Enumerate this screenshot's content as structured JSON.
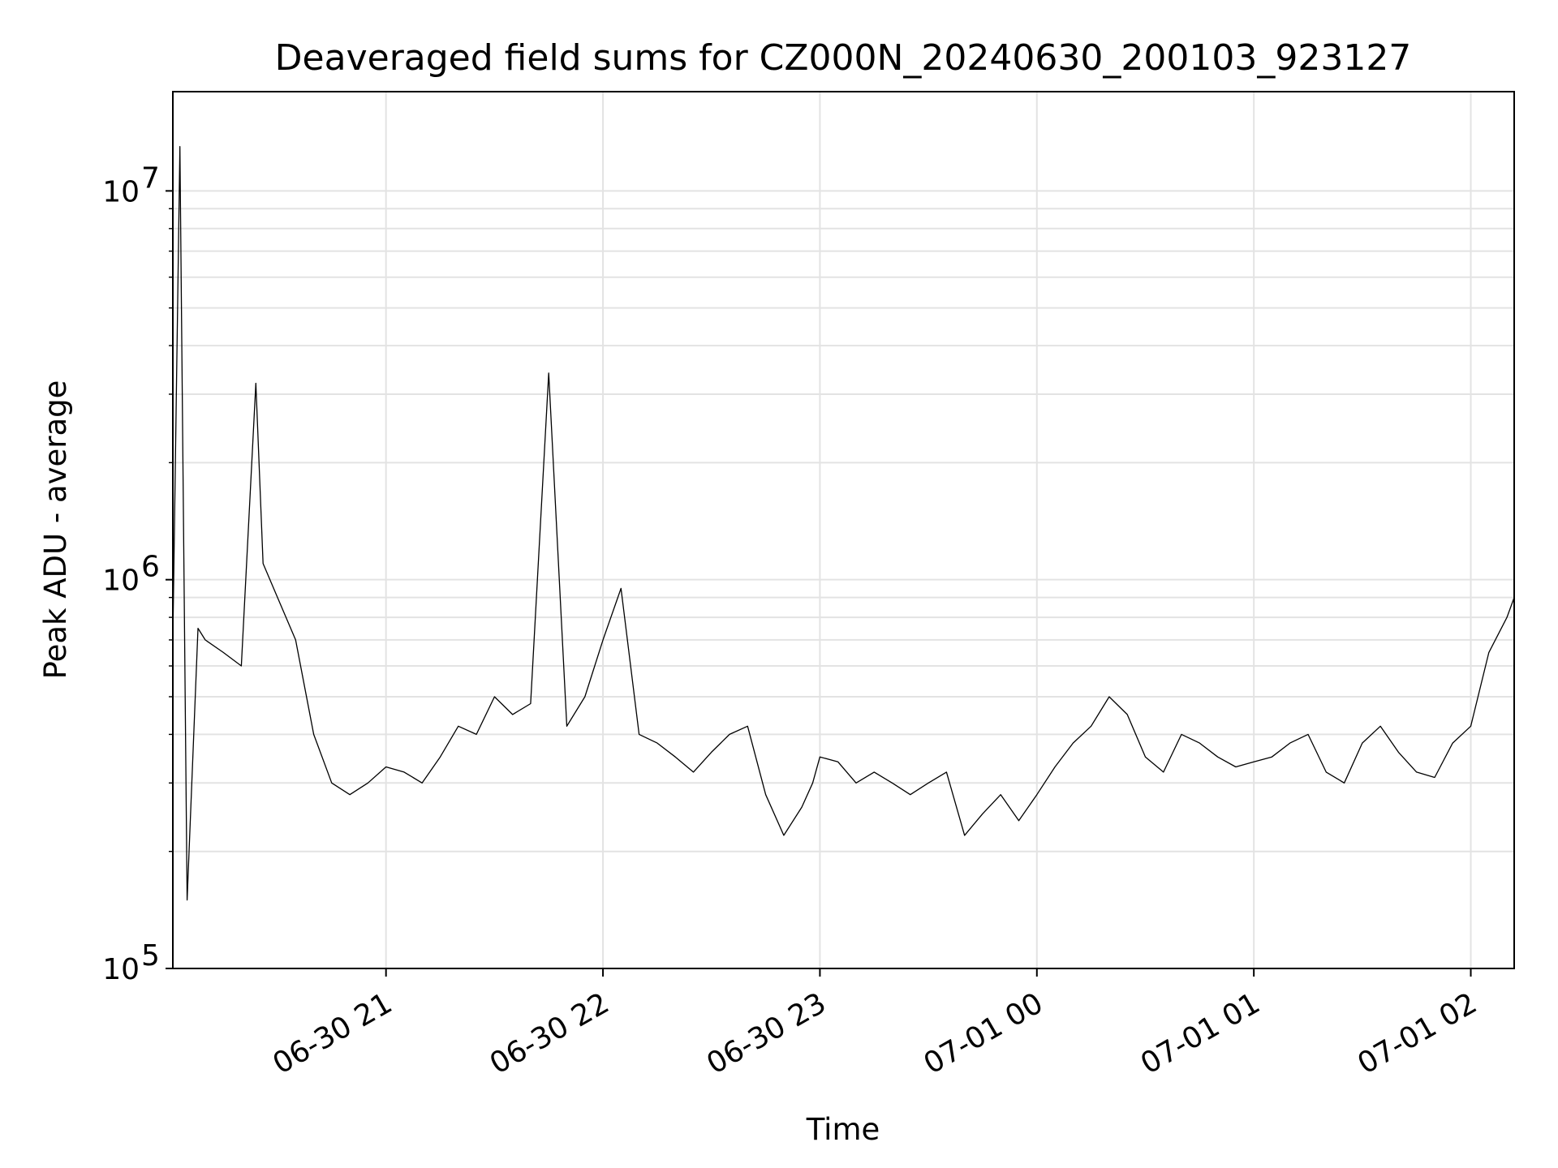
{
  "chart_data": {
    "type": "line",
    "title": "Deaveraged field sums for CZ000N_20240630_200103_923127",
    "xlabel": "Time",
    "ylabel": "Peak ADU - average",
    "yscale": "log",
    "ylim": [
      100000,
      18000000
    ],
    "xlim": [
      "2024-06-30T20:01:03",
      "2024-07-01T02:12:00"
    ],
    "grid": true,
    "x_ticks": [
      {
        "t": "2024-06-30T21:00:00",
        "label": "06-30 21"
      },
      {
        "t": "2024-06-30T22:00:00",
        "label": "06-30 22"
      },
      {
        "t": "2024-06-30T23:00:00",
        "label": "06-30 23"
      },
      {
        "t": "2024-07-01T00:00:00",
        "label": "07-01 00"
      },
      {
        "t": "2024-07-01T01:00:00",
        "label": "07-01 01"
      },
      {
        "t": "2024-07-01T02:00:00",
        "label": "07-01 02"
      }
    ],
    "y_ticks": [
      {
        "v": 100000,
        "label": "10",
        "exp": "5"
      },
      {
        "v": 1000000,
        "label": "10",
        "exp": "6"
      },
      {
        "v": 10000000,
        "label": "10",
        "exp": "7"
      }
    ],
    "series": [
      {
        "color": "#000000",
        "x": [
          "2024-06-30T20:01:03",
          "2024-06-30T20:03:00",
          "2024-06-30T20:05:00",
          "2024-06-30T20:08:00",
          "2024-06-30T20:10:00",
          "2024-06-30T20:15:00",
          "2024-06-30T20:20:00",
          "2024-06-30T20:24:00",
          "2024-06-30T20:26:00",
          "2024-06-30T20:30:00",
          "2024-06-30T20:35:00",
          "2024-06-30T20:40:00",
          "2024-06-30T20:45:00",
          "2024-06-30T20:50:00",
          "2024-06-30T20:55:00",
          "2024-06-30T21:00:00",
          "2024-06-30T21:05:00",
          "2024-06-30T21:10:00",
          "2024-06-30T21:15:00",
          "2024-06-30T21:20:00",
          "2024-06-30T21:25:00",
          "2024-06-30T21:30:00",
          "2024-06-30T21:35:00",
          "2024-06-30T21:40:00",
          "2024-06-30T21:45:00",
          "2024-06-30T21:50:00",
          "2024-06-30T21:55:00",
          "2024-06-30T22:00:00",
          "2024-06-30T22:05:00",
          "2024-06-30T22:10:00",
          "2024-06-30T22:15:00",
          "2024-06-30T22:20:00",
          "2024-06-30T22:25:00",
          "2024-06-30T22:30:00",
          "2024-06-30T22:35:00",
          "2024-06-30T22:40:00",
          "2024-06-30T22:45:00",
          "2024-06-30T22:50:00",
          "2024-06-30T22:55:00",
          "2024-06-30T22:58:00",
          "2024-06-30T23:00:00",
          "2024-06-30T23:05:00",
          "2024-06-30T23:10:00",
          "2024-06-30T23:15:00",
          "2024-06-30T23:20:00",
          "2024-06-30T23:25:00",
          "2024-06-30T23:30:00",
          "2024-06-30T23:35:00",
          "2024-06-30T23:40:00",
          "2024-06-30T23:45:00",
          "2024-06-30T23:50:00",
          "2024-06-30T23:55:00",
          "2024-07-01T00:00:00",
          "2024-07-01T00:05:00",
          "2024-07-01T00:10:00",
          "2024-07-01T00:15:00",
          "2024-07-01T00:20:00",
          "2024-07-01T00:25:00",
          "2024-07-01T00:30:00",
          "2024-07-01T00:35:00",
          "2024-07-01T00:40:00",
          "2024-07-01T00:45:00",
          "2024-07-01T00:50:00",
          "2024-07-01T00:55:00",
          "2024-07-01T01:00:00",
          "2024-07-01T01:05:00",
          "2024-07-01T01:10:00",
          "2024-07-01T01:15:00",
          "2024-07-01T01:20:00",
          "2024-07-01T01:25:00",
          "2024-07-01T01:30:00",
          "2024-07-01T01:35:00",
          "2024-07-01T01:40:00",
          "2024-07-01T01:45:00",
          "2024-07-01T01:50:00",
          "2024-07-01T01:55:00",
          "2024-07-01T02:00:00",
          "2024-07-01T02:05:00",
          "2024-07-01T02:10:00",
          "2024-07-01T02:12:00"
        ],
        "y": [
          700000,
          13000000,
          150000,
          750000,
          700000,
          650000,
          600000,
          3200000,
          1100000,
          900000,
          700000,
          400000,
          300000,
          280000,
          300000,
          330000,
          320000,
          300000,
          350000,
          420000,
          400000,
          500000,
          450000,
          480000,
          3400000,
          420000,
          500000,
          700000,
          950000,
          400000,
          380000,
          350000,
          320000,
          360000,
          400000,
          420000,
          280000,
          220000,
          260000,
          300000,
          350000,
          340000,
          300000,
          320000,
          300000,
          280000,
          300000,
          320000,
          220000,
          250000,
          280000,
          240000,
          280000,
          330000,
          380000,
          420000,
          500000,
          450000,
          350000,
          320000,
          400000,
          380000,
          350000,
          330000,
          340000,
          350000,
          380000,
          400000,
          320000,
          300000,
          380000,
          420000,
          360000,
          320000,
          310000,
          380000,
          420000,
          650000,
          800000,
          900000
        ]
      }
    ]
  }
}
